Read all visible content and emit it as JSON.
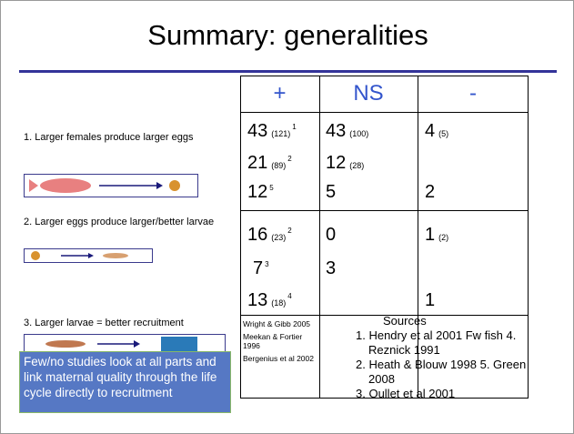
{
  "title": "Summary: generalities",
  "items": [
    "1. Larger females produce larger eggs",
    "2. Larger eggs produce larger/better larvae",
    "3. Larger larvae = better recruitment"
  ],
  "callout": "Few/no studies look at all parts and link maternal quality through the life cycle directly to recruitment",
  "table": {
    "header": [
      "+",
      "NS",
      "-"
    ],
    "groups": [
      [
        [
          {
            "n": 43,
            "note": "(121)",
            "ref": "1"
          },
          {
            "n": 43,
            "note": "(100)"
          },
          {
            "n": 4,
            "note": "(5)"
          }
        ],
        [
          {
            "n": 21,
            "note": "(89)",
            "ref": "2"
          },
          {
            "n": 12,
            "note": "(28)"
          },
          null
        ],
        [
          {
            "n": 12,
            "ref": "5"
          },
          {
            "n": 5
          },
          {
            "n": 2
          }
        ]
      ],
      [
        [
          {
            "n": 16,
            "note": "(23)",
            "ref": "2"
          },
          {
            "n": 0
          },
          {
            "n": 1,
            "note": "(2)"
          }
        ],
        [
          {
            "n": 7,
            "ref": "3"
          },
          {
            "n": 3
          },
          null
        ],
        [
          {
            "n": 13,
            "note": "(18)",
            "ref": "4"
          },
          null,
          {
            "n": 1
          }
        ]
      ]
    ],
    "references": [
      "Wright & Gibb 2005",
      "Meekan & Fortier 1996",
      "Bergenius et al 2002"
    ]
  },
  "sources": {
    "title": "Sources",
    "list": [
      "1. Hendry et al 2001 Fw fish 4. Reznick 1991",
      "2. Heath & Blouw 1998 5. Green 2008",
      "3. Oullet et al 2001"
    ]
  }
}
